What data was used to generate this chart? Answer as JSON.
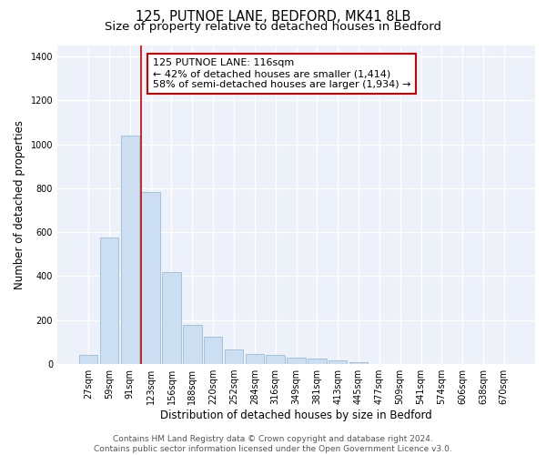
{
  "title1": "125, PUTNOE LANE, BEDFORD, MK41 8LB",
  "title2": "Size of property relative to detached houses in Bedford",
  "xlabel": "Distribution of detached houses by size in Bedford",
  "ylabel": "Number of detached properties",
  "bar_labels": [
    "27sqm",
    "59sqm",
    "91sqm",
    "123sqm",
    "156sqm",
    "188sqm",
    "220sqm",
    "252sqm",
    "284sqm",
    "316sqm",
    "349sqm",
    "381sqm",
    "413sqm",
    "445sqm",
    "477sqm",
    "509sqm",
    "541sqm",
    "574sqm",
    "606sqm",
    "638sqm",
    "670sqm"
  ],
  "bar_values": [
    40,
    575,
    1040,
    785,
    420,
    180,
    125,
    65,
    45,
    42,
    28,
    25,
    17,
    8,
    0,
    0,
    0,
    0,
    0,
    0,
    0
  ],
  "bar_color": "#ccdff2",
  "bar_edge_color": "#9bbdd6",
  "vline_color": "#cc0000",
  "annotation_text": "125 PUTNOE LANE: 116sqm\n← 42% of detached houses are smaller (1,414)\n58% of semi-detached houses are larger (1,934) →",
  "annotation_box_color": "#cc0000",
  "ylim": [
    0,
    1450
  ],
  "yticks": [
    0,
    200,
    400,
    600,
    800,
    1000,
    1200,
    1400
  ],
  "background_color": "#edf2fa",
  "grid_color": "#ffffff",
  "footer_text": "Contains HM Land Registry data © Crown copyright and database right 2024.\nContains public sector information licensed under the Open Government Licence v3.0.",
  "title1_fontsize": 10.5,
  "title2_fontsize": 9.5,
  "xlabel_fontsize": 8.5,
  "ylabel_fontsize": 8.5,
  "tick_fontsize": 7,
  "annotation_fontsize": 8,
  "footer_fontsize": 6.5
}
